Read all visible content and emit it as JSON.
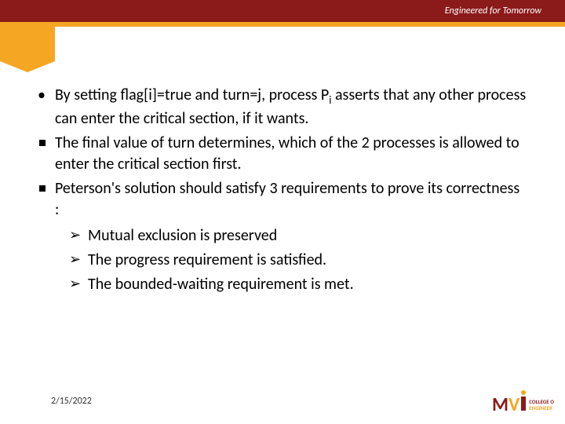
{
  "header": {
    "tagline": "Engineered for Tomorrow"
  },
  "bullets": [
    {
      "style": "round",
      "html": "By setting flag[i]=true and turn=j, process P<span class=\"sub\">i</span> asserts that any other process can enter the critical section, if it wants."
    },
    {
      "style": "square",
      "html": "The final value of turn determines, which of the 2 processes is allowed to enter the critical section first."
    },
    {
      "style": "square",
      "html": "Peterson's solution should satisfy 3 requirements to prove its correctness :",
      "sub": [
        "Mutual exclusion is preserved",
        "The progress requirement is satisfied.",
        "The bounded-waiting requirement is met."
      ]
    }
  ],
  "footer": {
    "date": "2/15/2022",
    "logo": {
      "m": "M",
      "v": "V",
      "line1": "COLLEGE O",
      "line2": "ENGINEER"
    }
  },
  "colors": {
    "brand_red": "#8b1a1a",
    "brand_orange": "#f5a623",
    "background": "#ffffff",
    "text": "#000000"
  }
}
